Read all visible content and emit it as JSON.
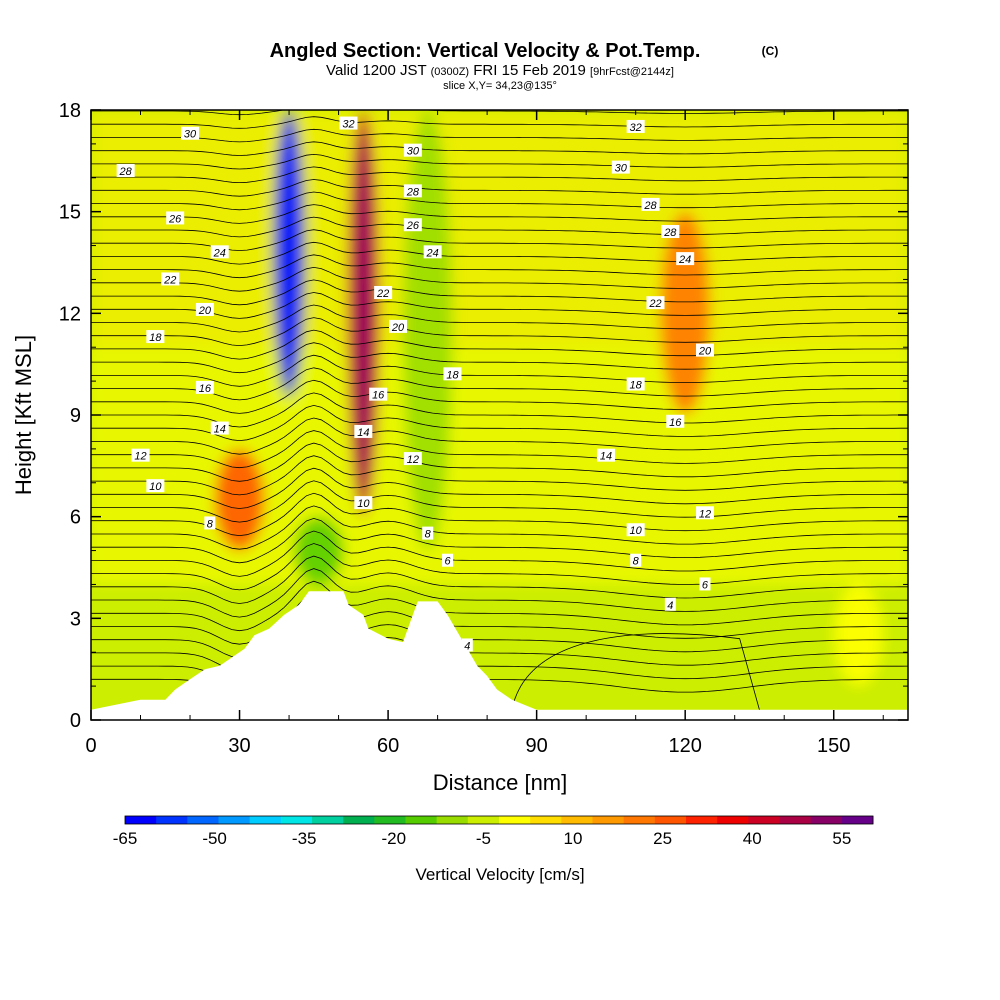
{
  "chart_data": {
    "type": "heatmap",
    "title": "Angled Section: Vertical Velocity & Pot.Temp.",
    "title_units": "(C)",
    "subtitle_valid": "Valid 1200 JST",
    "subtitle_utc": "(0300Z)",
    "subtitle_date": "FRI 15 Feb 2019",
    "subtitle_fcst": "[9hrFcst@2144z]",
    "subtitle_slice": "slice X,Y= 34,23@135°",
    "xlabel": "Distance [nm]",
    "ylabel": "Height [Kft MSL]",
    "xlim": [
      0,
      165
    ],
    "ylim": [
      0,
      18
    ],
    "x_ticks": [
      "0",
      "30",
      "60",
      "90",
      "120",
      "150"
    ],
    "y_ticks": [
      "0",
      "3",
      "6",
      "9",
      "12",
      "15",
      "18"
    ],
    "colorbar": {
      "label": "Vertical Velocity [cm/s]",
      "tick_labels": [
        "-65",
        "-50",
        "-35",
        "-20",
        "-5",
        "10",
        "25",
        "40",
        "55"
      ],
      "colors": [
        "#0000ff",
        "#0033ff",
        "#0066ff",
        "#0099ff",
        "#00ccff",
        "#00e6e6",
        "#00d0a0",
        "#00b050",
        "#22bb22",
        "#55cc00",
        "#99dd00",
        "#ccee00",
        "#ffff00",
        "#ffdd00",
        "#ffbb00",
        "#ff9900",
        "#ff7700",
        "#ff5500",
        "#ff2200",
        "#ee0000",
        "#cc0022",
        "#aa0044",
        "#880066",
        "#660088"
      ]
    },
    "velocity_features": [
      {
        "feature": "downdraft",
        "x": 40,
        "z_bottom": 9.5,
        "z_top": 18,
        "w": -60
      },
      {
        "feature": "updraft",
        "x": 55,
        "z_bottom": 6,
        "z_top": 18,
        "w": 40
      },
      {
        "feature": "updraft",
        "x": 30,
        "z_bottom": 5,
        "z_top": 8,
        "w": 25
      },
      {
        "feature": "downdraft",
        "x": 46,
        "z_bottom": 4,
        "z_top": 6,
        "w": -20
      },
      {
        "feature": "downdraft",
        "x": 68,
        "z_bottom": 5,
        "z_top": 18,
        "w": -15
      },
      {
        "feature": "updraft",
        "x": 120,
        "z_bottom": 9,
        "z_top": 15,
        "w": 20
      },
      {
        "feature": "downdraft",
        "x": 155,
        "z_bottom": 1,
        "z_top": 4,
        "w": -5
      }
    ],
    "theta_contour_labels": [
      {
        "value": "30",
        "x": 20,
        "z": 17.3
      },
      {
        "value": "28",
        "x": 7,
        "z": 16.2
      },
      {
        "value": "32",
        "x": 52,
        "z": 17.6
      },
      {
        "value": "30",
        "x": 65,
        "z": 16.8
      },
      {
        "value": "28",
        "x": 65,
        "z": 15.6
      },
      {
        "value": "26",
        "x": 65,
        "z": 14.6
      },
      {
        "value": "26",
        "x": 17,
        "z": 14.8
      },
      {
        "value": "24",
        "x": 26,
        "z": 13.8
      },
      {
        "value": "24",
        "x": 69,
        "z": 13.8
      },
      {
        "value": "22",
        "x": 16,
        "z": 13.0
      },
      {
        "value": "22",
        "x": 59,
        "z": 12.6
      },
      {
        "value": "20",
        "x": 23,
        "z": 12.1
      },
      {
        "value": "20",
        "x": 62,
        "z": 11.6
      },
      {
        "value": "18",
        "x": 13,
        "z": 11.3
      },
      {
        "value": "18",
        "x": 73,
        "z": 10.2
      },
      {
        "value": "16",
        "x": 23,
        "z": 9.8
      },
      {
        "value": "16",
        "x": 58,
        "z": 9.6
      },
      {
        "value": "14",
        "x": 26,
        "z": 8.6
      },
      {
        "value": "14",
        "x": 55,
        "z": 8.5
      },
      {
        "value": "12",
        "x": 10,
        "z": 7.8
      },
      {
        "value": "12",
        "x": 65,
        "z": 7.7
      },
      {
        "value": "10",
        "x": 13,
        "z": 6.9
      },
      {
        "value": "10",
        "x": 55,
        "z": 6.4
      },
      {
        "value": "8",
        "x": 24,
        "z": 5.8
      },
      {
        "value": "8",
        "x": 68,
        "z": 5.5
      },
      {
        "value": "6",
        "x": 72,
        "z": 4.7
      },
      {
        "value": "32",
        "x": 110,
        "z": 17.5
      },
      {
        "value": "30",
        "x": 107,
        "z": 16.3
      },
      {
        "value": "28",
        "x": 113,
        "z": 15.2
      },
      {
        "value": "28",
        "x": 117,
        "z": 14.4
      },
      {
        "value": "24",
        "x": 120,
        "z": 13.6
      },
      {
        "value": "22",
        "x": 114,
        "z": 12.3
      },
      {
        "value": "20",
        "x": 124,
        "z": 10.9
      },
      {
        "value": "18",
        "x": 110,
        "z": 9.9
      },
      {
        "value": "16",
        "x": 118,
        "z": 8.8
      },
      {
        "value": "14",
        "x": 104,
        "z": 7.8
      },
      {
        "value": "12",
        "x": 124,
        "z": 6.1
      },
      {
        "value": "10",
        "x": 110,
        "z": 5.6
      },
      {
        "value": "8",
        "x": 110,
        "z": 4.7
      },
      {
        "value": "6",
        "x": 124,
        "z": 4.0
      },
      {
        "value": "4",
        "x": 117,
        "z": 3.4
      },
      {
        "value": "4",
        "x": 76,
        "z": 2.2
      }
    ],
    "terrain_profile_kft": [
      [
        0,
        0.3
      ],
      [
        10,
        0.6
      ],
      [
        15,
        0.6
      ],
      [
        17,
        0.9
      ],
      [
        20,
        1.2
      ],
      [
        23,
        1.5
      ],
      [
        26,
        1.6
      ],
      [
        28,
        1.8
      ],
      [
        31,
        2.1
      ],
      [
        33,
        2.5
      ],
      [
        36,
        2.7
      ],
      [
        39,
        3.1
      ],
      [
        42,
        3.4
      ],
      [
        44,
        3.8
      ],
      [
        47,
        3.8
      ],
      [
        51,
        3.8
      ],
      [
        52,
        3.4
      ],
      [
        55,
        3.1
      ],
      [
        56,
        2.7
      ],
      [
        60,
        2.4
      ],
      [
        63,
        2.3
      ],
      [
        64,
        2.7
      ],
      [
        65,
        3.1
      ],
      [
        66,
        3.5
      ],
      [
        70,
        3.5
      ],
      [
        72,
        3.1
      ],
      [
        74,
        2.6
      ],
      [
        76,
        2.1
      ],
      [
        78,
        1.6
      ],
      [
        80,
        1.3
      ],
      [
        82,
        0.9
      ],
      [
        85,
        0.6
      ],
      [
        90,
        0.3
      ],
      [
        165,
        0.3
      ]
    ]
  }
}
